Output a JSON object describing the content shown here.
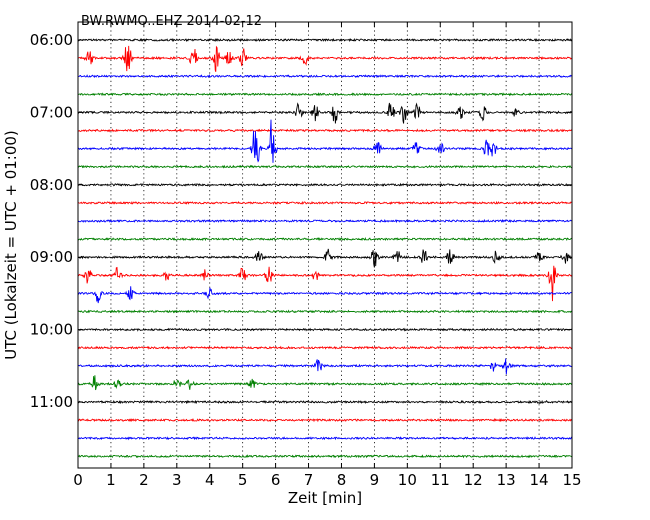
{
  "chart_data": {
    "type": "line",
    "title": "BW.RWMO..EHZ 2014-02-12",
    "xlabel": "Zeit  [min]",
    "ylabel": "UTC (Lokalzeit = UTC + 01:00)",
    "xlim": [
      0,
      15
    ],
    "x_ticks": [
      "0",
      "1",
      "2",
      "3",
      "4",
      "5",
      "6",
      "7",
      "8",
      "9",
      "10",
      "11",
      "12",
      "13",
      "14",
      "15"
    ],
    "y_ticks": [
      "06:00",
      "07:00",
      "08:00",
      "09:00",
      "10:00",
      "11:00"
    ],
    "grid": "vertical dotted at each minute",
    "trace_colors": [
      "#000000",
      "#ff0000",
      "#0000ff",
      "#008000"
    ],
    "traces": [
      {
        "start": "06:00",
        "color": "#000000",
        "bursts": []
      },
      {
        "start": "06:15",
        "color": "#ff0000",
        "bursts": [
          [
            0.35,
            1.0
          ],
          [
            1.5,
            2.5
          ],
          [
            3.5,
            1.4
          ],
          [
            4.2,
            1.6
          ],
          [
            4.6,
            1.3
          ],
          [
            5.0,
            1.1
          ],
          [
            6.9,
            0.7
          ]
        ]
      },
      {
        "start": "06:30",
        "color": "#0000ff",
        "bursts": []
      },
      {
        "start": "06:45",
        "color": "#008000",
        "bursts": []
      },
      {
        "start": "07:00",
        "color": "#000000",
        "bursts": [
          [
            6.7,
            1.0
          ],
          [
            7.2,
            0.9
          ],
          [
            7.8,
            1.2
          ],
          [
            9.5,
            1.3
          ],
          [
            9.9,
            1.2
          ],
          [
            10.3,
            1.0
          ],
          [
            11.6,
            0.9
          ],
          [
            12.3,
            0.9
          ],
          [
            13.3,
            0.6
          ]
        ]
      },
      {
        "start": "07:15",
        "color": "#ff0000",
        "bursts": []
      },
      {
        "start": "07:30",
        "color": "#0000ff",
        "bursts": [
          [
            5.4,
            3.5
          ],
          [
            5.9,
            3.8
          ],
          [
            9.1,
            0.9
          ],
          [
            10.3,
            1.5
          ],
          [
            11.0,
            1.0
          ],
          [
            12.4,
            1.0
          ],
          [
            12.6,
            1.1
          ]
        ]
      },
      {
        "start": "07:45",
        "color": "#008000",
        "bursts": []
      },
      {
        "start": "08:00",
        "color": "#000000",
        "bursts": []
      },
      {
        "start": "08:15",
        "color": "#ff0000",
        "bursts": []
      },
      {
        "start": "08:30",
        "color": "#0000ff",
        "bursts": []
      },
      {
        "start": "08:45",
        "color": "#008000",
        "bursts": []
      },
      {
        "start": "09:00",
        "color": "#000000",
        "bursts": [
          [
            5.5,
            0.9
          ],
          [
            7.6,
            0.9
          ],
          [
            9.0,
            1.1
          ],
          [
            9.7,
            1.1
          ],
          [
            10.5,
            1.0
          ],
          [
            11.3,
            1.0
          ],
          [
            12.7,
            0.8
          ],
          [
            14.0,
            0.7
          ],
          [
            14.8,
            0.7
          ]
        ]
      },
      {
        "start": "09:15",
        "color": "#ff0000",
        "bursts": [
          [
            0.3,
            0.9
          ],
          [
            1.2,
            0.9
          ],
          [
            2.7,
            0.8
          ],
          [
            3.9,
            0.9
          ],
          [
            5.0,
            1.0
          ],
          [
            5.8,
            1.0
          ],
          [
            7.2,
            0.7
          ],
          [
            14.4,
            2.8
          ]
        ]
      },
      {
        "start": "09:30",
        "color": "#0000ff",
        "bursts": [
          [
            0.6,
            1.0
          ],
          [
            1.6,
            0.7
          ],
          [
            4.0,
            0.6
          ]
        ]
      },
      {
        "start": "09:45",
        "color": "#008000",
        "bursts": []
      },
      {
        "start": "10:00",
        "color": "#000000",
        "bursts": []
      },
      {
        "start": "10:15",
        "color": "#ff0000",
        "bursts": []
      },
      {
        "start": "10:30",
        "color": "#0000ff",
        "bursts": [
          [
            7.3,
            0.9
          ],
          [
            12.6,
            0.8
          ],
          [
            13.0,
            0.9
          ]
        ]
      },
      {
        "start": "10:45",
        "color": "#008000",
        "bursts": [
          [
            0.5,
            1.0
          ],
          [
            1.2,
            0.6
          ],
          [
            3.0,
            0.7
          ],
          [
            3.4,
            0.6
          ],
          [
            5.3,
            0.5
          ]
        ]
      },
      {
        "start": "11:00",
        "color": "#000000",
        "bursts": [
          [
            14.1,
            0.3
          ]
        ]
      },
      {
        "start": "11:15",
        "color": "#ff0000",
        "bursts": []
      },
      {
        "start": "11:30",
        "color": "#0000ff",
        "bursts": []
      },
      {
        "start": "11:45",
        "color": "#008000",
        "bursts": []
      }
    ]
  }
}
